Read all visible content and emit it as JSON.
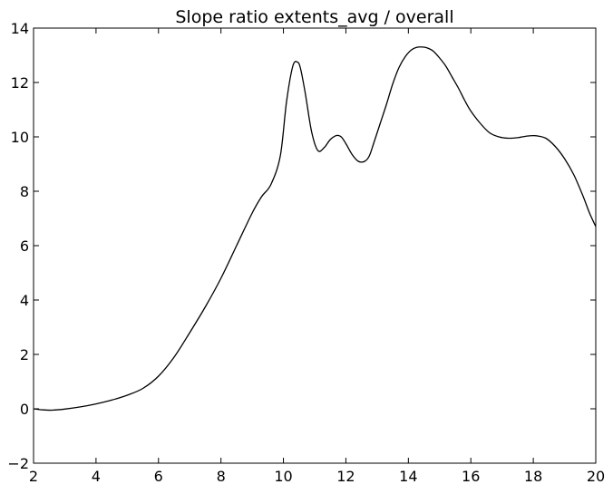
{
  "chart_data": {
    "type": "line",
    "title": "Slope ratio extents_avg / overall",
    "xlabel": "",
    "ylabel": "",
    "xlim": [
      2,
      20
    ],
    "ylim": [
      -2,
      14
    ],
    "xticks": [
      2,
      4,
      6,
      8,
      10,
      12,
      14,
      16,
      18,
      20
    ],
    "yticks": [
      -2,
      0,
      2,
      4,
      6,
      8,
      10,
      12,
      14
    ],
    "xtick_labels": [
      "2",
      "4",
      "6",
      "8",
      "10",
      "12",
      "14",
      "16",
      "18",
      "20"
    ],
    "ytick_labels": [
      "−2",
      "0",
      "2",
      "4",
      "6",
      "8",
      "10",
      "12",
      "14"
    ],
    "grid": false,
    "line_color": "#000000",
    "series": [
      {
        "x": [
          2.0,
          2.3,
          2.6,
          3.0,
          3.5,
          4.0,
          4.5,
          5.0,
          5.5,
          6.0,
          6.5,
          7.0,
          7.5,
          8.0,
          8.5,
          9.0,
          9.3,
          9.6,
          9.9,
          10.1,
          10.3,
          10.45,
          10.55,
          10.7,
          10.9,
          11.1,
          11.3,
          11.5,
          11.7,
          11.85,
          12.0,
          12.2,
          12.4,
          12.6,
          12.75,
          12.9,
          13.1,
          13.3,
          13.5,
          13.7,
          13.9,
          14.1,
          14.3,
          14.5,
          14.65,
          14.8,
          15.0,
          15.2,
          15.4,
          15.6,
          15.8,
          16.0,
          16.3,
          16.6,
          16.9,
          17.2,
          17.5,
          17.8,
          18.1,
          18.4,
          18.7,
          19.0,
          19.3,
          19.6,
          19.8,
          20.0
        ],
        "y": [
          0.0,
          -0.04,
          -0.05,
          -0.01,
          0.07,
          0.18,
          0.32,
          0.5,
          0.75,
          1.2,
          1.9,
          2.8,
          3.75,
          4.8,
          6.0,
          7.2,
          7.8,
          8.25,
          9.3,
          11.3,
          12.6,
          12.75,
          12.5,
          11.6,
          10.2,
          9.5,
          9.6,
          9.9,
          10.05,
          10.0,
          9.75,
          9.35,
          9.1,
          9.1,
          9.3,
          9.8,
          10.5,
          11.2,
          11.95,
          12.55,
          12.95,
          13.2,
          13.3,
          13.3,
          13.25,
          13.15,
          12.9,
          12.6,
          12.2,
          11.8,
          11.35,
          10.95,
          10.5,
          10.15,
          10.0,
          9.95,
          9.97,
          10.03,
          10.04,
          9.95,
          9.65,
          9.2,
          8.6,
          7.8,
          7.2,
          6.7
        ]
      }
    ]
  }
}
